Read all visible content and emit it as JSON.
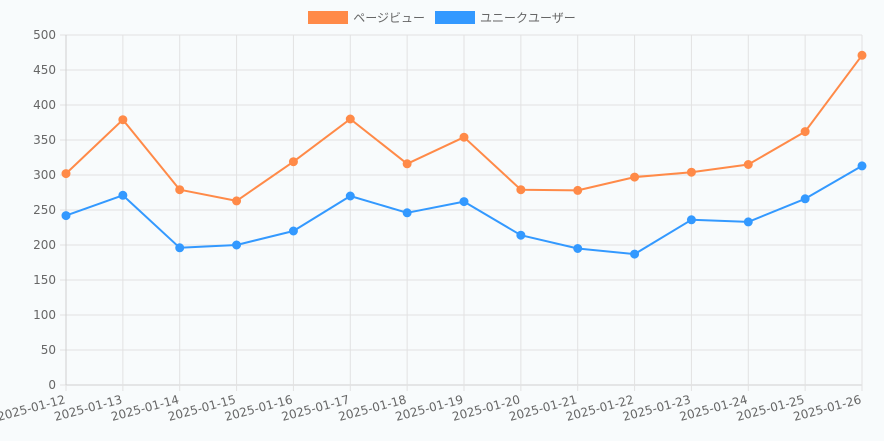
{
  "chart_data": {
    "type": "line",
    "categories": [
      "2025-01-12",
      "2025-01-13",
      "2025-01-14",
      "2025-01-15",
      "2025-01-16",
      "2025-01-17",
      "2025-01-18",
      "2025-01-19",
      "2025-01-20",
      "2025-01-21",
      "2025-01-22",
      "2025-01-23",
      "2025-01-24",
      "2025-01-25",
      "2025-01-26"
    ],
    "series": [
      {
        "name": "ページビュー",
        "color": "#ff8a48",
        "values": [
          302,
          379,
          279,
          263,
          319,
          380,
          316,
          354,
          279,
          278,
          297,
          304,
          315,
          362,
          471
        ]
      },
      {
        "name": "ユニークユーザー",
        "color": "#3399ff",
        "values": [
          242,
          271,
          196,
          200,
          220,
          270,
          246,
          262,
          214,
          195,
          187,
          236,
          233,
          266,
          313
        ]
      }
    ],
    "ylim": [
      0,
      500
    ],
    "yticks": [
      0,
      50,
      100,
      150,
      200,
      250,
      300,
      350,
      400,
      450,
      500
    ],
    "grid": true,
    "legend_position": "top-center",
    "title": "",
    "xlabel": "",
    "ylabel": ""
  }
}
